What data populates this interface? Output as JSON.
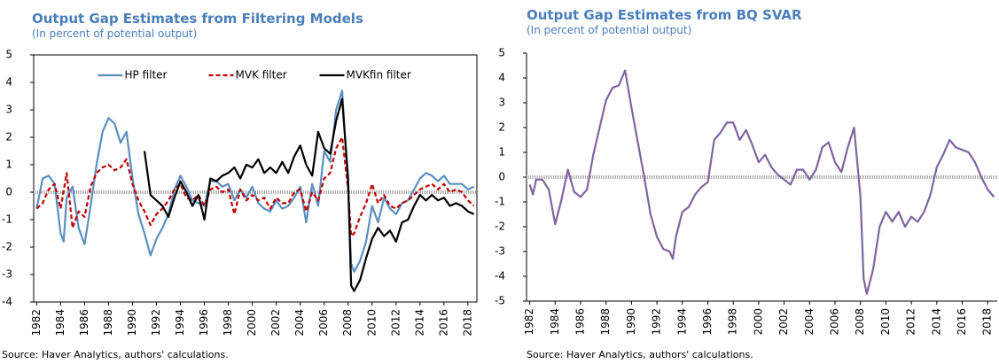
{
  "chart_data": [
    {
      "type": "line",
      "title": "Output Gap Estimates from Filtering Models",
      "subtitle": "(In percent of potential output)",
      "note": "Source: Haver Analytics, authors' calculations.",
      "xlim": [
        1981.75,
        2018.75
      ],
      "xticks": [
        1982,
        1984,
        1986,
        1988,
        1990,
        1992,
        1994,
        1996,
        1998,
        2000,
        2002,
        2004,
        2006,
        2008,
        2010,
        2012,
        2014,
        2016,
        2018
      ],
      "ylim": [
        -4,
        5
      ],
      "yticks": [
        -4,
        -3,
        -2,
        -1,
        0,
        1,
        2,
        3,
        4,
        5
      ],
      "legend": "upper center",
      "series": [
        {
          "name": "HP filter",
          "color": "#5b8fc0",
          "linestyle": "solid",
          "x": [
            1982,
            1982.5,
            1983,
            1983.5,
            1984,
            1984.25,
            1984.5,
            1985,
            1985.5,
            1986,
            1986.5,
            1987,
            1987.5,
            1988,
            1988.5,
            1989,
            1989.5,
            1990,
            1990.5,
            1991,
            1991.5,
            1992,
            1992.5,
            1993,
            1993.5,
            1994,
            1994.5,
            1995,
            1995.5,
            1996,
            1996.5,
            1997,
            1997.5,
            1998,
            1998.5,
            1999,
            1999.5,
            2000,
            2000.5,
            2001,
            2001.5,
            2002,
            2002.5,
            2003,
            2003.5,
            2004,
            2004.5,
            2005,
            2005.5,
            2006,
            2006.5,
            2007,
            2007.5,
            2008,
            2008.25,
            2008.5,
            2009,
            2009.5,
            2010,
            2010.5,
            2011,
            2011.5,
            2012,
            2012.5,
            2013,
            2013.5,
            2014,
            2014.5,
            2015,
            2015.5,
            2016,
            2016.5,
            2017,
            2017.5,
            2018,
            2018.5
          ],
          "values": [
            -0.6,
            0.5,
            0.6,
            0.3,
            -1.5,
            -1.8,
            -0.2,
            0.2,
            -1.3,
            -1.9,
            -0.5,
            1.0,
            2.2,
            2.7,
            2.5,
            1.8,
            2.2,
            0.5,
            -0.8,
            -1.5,
            -2.3,
            -1.7,
            -1.3,
            -0.8,
            0.1,
            0.6,
            0.2,
            -0.3,
            -0.4,
            -0.5,
            0.4,
            0.4,
            0.2,
            0.3,
            -0.3,
            0.1,
            -0.2,
            0.2,
            -0.4,
            -0.6,
            -0.7,
            -0.3,
            -0.6,
            -0.5,
            -0.2,
            0.2,
            -1.1,
            0.3,
            -0.5,
            1.5,
            1.1,
            3.0,
            3.7,
            0.2,
            -2.6,
            -2.9,
            -2.5,
            -1.8,
            -0.5,
            -1.1,
            -0.2,
            -0.6,
            -0.8,
            -0.4,
            -0.3,
            0.1,
            0.5,
            0.7,
            0.6,
            0.4,
            0.6,
            0.3,
            0.3,
            0.3,
            0.1,
            0.2
          ]
        },
        {
          "name": "MVK filter",
          "color": "#c00000",
          "linestyle": "dashed",
          "x": [
            1982,
            1982.5,
            1983,
            1983.5,
            1984,
            1984.5,
            1985,
            1985.5,
            1986,
            1986.5,
            1987,
            1987.5,
            1988,
            1988.5,
            1989,
            1989.5,
            1990,
            1990.5,
            1991,
            1991.5,
            1992,
            1992.5,
            1993,
            1993.5,
            1994,
            1994.5,
            1995,
            1995.5,
            1996,
            1996.5,
            1997,
            1997.5,
            1998,
            1998.5,
            1999,
            1999.5,
            2000,
            2000.5,
            2001,
            2001.5,
            2002,
            2002.5,
            2003,
            2003.5,
            2004,
            2004.5,
            2005,
            2005.5,
            2006,
            2006.5,
            2007,
            2007.5,
            2008,
            2008.25,
            2008.5,
            2009,
            2009.5,
            2010,
            2010.5,
            2011,
            2011.5,
            2012,
            2012.5,
            2013,
            2013.5,
            2014,
            2014.5,
            2015,
            2015.5,
            2016,
            2016.5,
            2017,
            2017.5,
            2018,
            2018.5
          ],
          "values": [
            -0.6,
            -0.4,
            0.1,
            0.3,
            -0.6,
            0.7,
            -1.3,
            -0.7,
            -0.9,
            0.2,
            0.7,
            0.9,
            1.0,
            0.8,
            0.9,
            1.2,
            0.3,
            -0.3,
            -0.7,
            -1.2,
            -0.8,
            -0.6,
            -0.3,
            0.1,
            0.3,
            -0.2,
            -0.3,
            -0.1,
            -0.5,
            0.1,
            0.2,
            0.0,
            0.1,
            -0.8,
            0.1,
            -0.3,
            -0.1,
            -0.3,
            -0.2,
            -0.6,
            -0.2,
            -0.4,
            -0.4,
            0.0,
            0.1,
            -0.7,
            0.0,
            -0.3,
            0.5,
            0.7,
            1.6,
            2.0,
            0.1,
            -1.6,
            -1.5,
            -0.9,
            -0.4,
            0.3,
            -0.4,
            -0.1,
            -0.5,
            -0.6,
            -0.4,
            -0.3,
            -0.1,
            0.1,
            0.2,
            0.3,
            0.1,
            0.3,
            0.0,
            0.1,
            0.0,
            -0.3,
            -0.5
          ]
        },
        {
          "name": "MVKfin filter",
          "color": "#000000",
          "linestyle": "solid",
          "x": [
            1991,
            1991.5,
            1992,
            1992.5,
            1993,
            1993.5,
            1994,
            1994.5,
            1995,
            1995.5,
            1996,
            1996.5,
            1997,
            1997.5,
            1998,
            1998.5,
            1999,
            1999.5,
            2000,
            2000.5,
            2001,
            2001.5,
            2002,
            2002.5,
            2003,
            2003.5,
            2004,
            2004.5,
            2005,
            2005.5,
            2006,
            2006.5,
            2007,
            2007.5,
            2008,
            2008.25,
            2008.5,
            2009,
            2009.5,
            2010,
            2010.5,
            2011,
            2011.5,
            2012,
            2012.5,
            2013,
            2013.5,
            2014,
            2014.5,
            2015,
            2015.5,
            2016,
            2016.5,
            2017,
            2017.5,
            2018,
            2018.5
          ],
          "values": [
            1.5,
            -0.1,
            -0.3,
            -0.5,
            -0.9,
            -0.2,
            0.4,
            0.0,
            -0.5,
            -0.1,
            -1.0,
            0.5,
            0.4,
            0.6,
            0.7,
            0.9,
            0.5,
            1.0,
            0.9,
            1.2,
            0.7,
            0.9,
            0.7,
            1.1,
            0.7,
            1.3,
            1.7,
            1.0,
            0.6,
            2.2,
            1.6,
            1.4,
            2.6,
            3.4,
            0.5,
            -3.4,
            -3.6,
            -3.2,
            -2.4,
            -1.7,
            -1.3,
            -1.6,
            -1.4,
            -1.8,
            -1.1,
            -1.0,
            -0.5,
            -0.1,
            -0.3,
            -0.1,
            -0.3,
            -0.2,
            -0.5,
            -0.4,
            -0.5,
            -0.7,
            -0.8
          ]
        }
      ]
    },
    {
      "type": "line",
      "title": "Output Gap Estimates from BQ SVAR",
      "subtitle": "(In percent of potential output)",
      "note": "Source: Haver Analytics, authors' calculations.",
      "xlim": [
        1981.75,
        2018.75
      ],
      "xticks": [
        1982,
        1984,
        1986,
        1988,
        1990,
        1992,
        1994,
        1996,
        1998,
        2000,
        2002,
        2004,
        2006,
        2008,
        2010,
        2012,
        2014,
        2016,
        2018
      ],
      "ylim": [
        -5,
        5
      ],
      "yticks": [
        -5,
        -4,
        -3,
        -2,
        -1,
        0,
        1,
        2,
        3,
        4,
        5
      ],
      "series": [
        {
          "color": "#8064a2",
          "linestyle": "solid",
          "x": [
            1982,
            1982.25,
            1982.5,
            1983,
            1983.5,
            1984,
            1984.5,
            1985,
            1985.5,
            1986,
            1986.5,
            1987,
            1987.5,
            1988,
            1988.5,
            1989,
            1989.5,
            1990,
            1990.5,
            1991,
            1991.5,
            1992,
            1992.5,
            1993,
            1993.25,
            1993.5,
            1994,
            1994.5,
            1995,
            1995.5,
            1996,
            1996.5,
            1997,
            1997.5,
            1998,
            1998.5,
            1999,
            1999.5,
            2000,
            2000.5,
            2001,
            2001.5,
            2002,
            2002.5,
            2003,
            2003.5,
            2004,
            2004.5,
            2005,
            2005.5,
            2006,
            2006.5,
            2007,
            2007.5,
            2008,
            2008.25,
            2008.5,
            2009,
            2009.5,
            2010,
            2010.5,
            2011,
            2011.5,
            2012,
            2012.5,
            2013,
            2013.5,
            2014,
            2014.5,
            2015,
            2015.5,
            2016,
            2016.5,
            2017,
            2017.5,
            2018,
            2018.5
          ],
          "values": [
            -0.3,
            -0.7,
            -0.1,
            -0.1,
            -0.5,
            -1.9,
            -0.9,
            0.3,
            -0.6,
            -0.8,
            -0.5,
            0.9,
            2.0,
            3.1,
            3.6,
            3.7,
            4.3,
            2.8,
            1.4,
            0.0,
            -1.5,
            -2.4,
            -2.9,
            -3.0,
            -3.3,
            -2.4,
            -1.4,
            -1.2,
            -0.7,
            -0.4,
            -0.2,
            1.5,
            1.8,
            2.2,
            2.2,
            1.5,
            1.9,
            1.3,
            0.6,
            0.9,
            0.4,
            0.1,
            -0.1,
            -0.3,
            0.3,
            0.3,
            -0.1,
            0.3,
            1.2,
            1.4,
            0.6,
            0.2,
            1.2,
            2.0,
            -0.8,
            -4.1,
            -4.7,
            -3.7,
            -2.0,
            -1.4,
            -1.8,
            -1.4,
            -2.0,
            -1.6,
            -1.8,
            -1.4,
            -0.7,
            0.4,
            0.9,
            1.5,
            1.2,
            1.1,
            1.0,
            0.6,
            0.0,
            -0.5,
            -0.8
          ]
        }
      ]
    }
  ]
}
